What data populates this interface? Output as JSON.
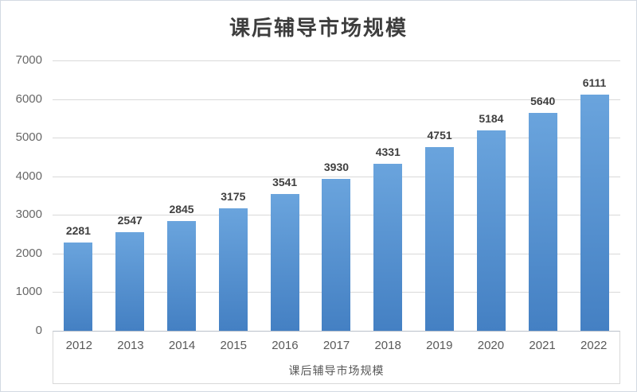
{
  "chart": {
    "title": "课后辅导市场规模",
    "x_axis_title": "课后辅导市场规模"
  },
  "chart_data": {
    "type": "bar",
    "title": "课后辅导市场规模",
    "categories": [
      "2012",
      "2013",
      "2014",
      "2015",
      "2016",
      "2017",
      "2018",
      "2019",
      "2020",
      "2021",
      "2022"
    ],
    "values": [
      2281,
      2547,
      2845,
      3175,
      3541,
      3930,
      4331,
      4751,
      5184,
      5640,
      6111
    ],
    "series_name": "课后辅导市场规模",
    "xlabel": "课后辅导市场规模",
    "ylabel": "",
    "ylim": [
      0,
      7000
    ],
    "yticks": [
      0,
      1000,
      2000,
      3000,
      4000,
      5000,
      6000,
      7000
    ],
    "grid": true,
    "data_labels": true,
    "legend_position": "none",
    "colors": {
      "bar_top": "#6aa4dd",
      "bar_bottom": "#4480c3",
      "gridline": "#d9d9d9",
      "axis_line": "#b9c0ca",
      "title_text": "#3d3d3d",
      "tick_text": "#686868",
      "category_text": "#595959",
      "data_label_text": "#3f3f3f"
    }
  }
}
